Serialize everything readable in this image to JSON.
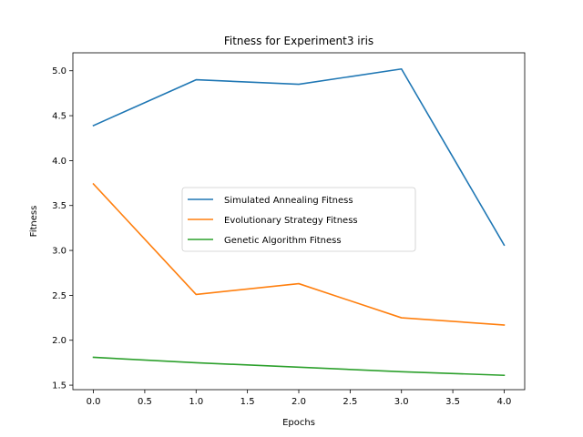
{
  "chart_data": {
    "type": "line",
    "title": "Fitness for Experiment3 iris",
    "xlabel": "Epochs",
    "ylabel": "Fitness",
    "x": [
      0,
      1,
      2,
      3,
      4
    ],
    "xlim": [
      -0.2,
      4.2
    ],
    "ylim": [
      1.45,
      5.2
    ],
    "xticks": [
      0.0,
      0.5,
      1.0,
      1.5,
      2.0,
      2.5,
      3.0,
      3.5,
      4.0
    ],
    "xtick_labels": [
      "0.0",
      "0.5",
      "1.0",
      "1.5",
      "2.0",
      "2.5",
      "3.0",
      "3.5",
      "4.0"
    ],
    "yticks": [
      1.5,
      2.0,
      2.5,
      3.0,
      3.5,
      4.0,
      4.5,
      5.0
    ],
    "ytick_labels": [
      "1.5",
      "2.0",
      "2.5",
      "3.0",
      "3.5",
      "4.0",
      "4.5",
      "5.0"
    ],
    "grid": false,
    "legend_position": "center",
    "series": [
      {
        "name": "Simulated Annealing Fitness",
        "color": "#1f77b4",
        "values": [
          4.39,
          4.9,
          4.85,
          5.02,
          3.06
        ]
      },
      {
        "name": "Evolutionary Strategy Fitness",
        "color": "#ff7f0e",
        "values": [
          3.74,
          2.51,
          2.63,
          2.25,
          2.17
        ]
      },
      {
        "name": "Genetic Algorithm Fitness",
        "color": "#2ca02c",
        "values": [
          1.81,
          1.75,
          1.7,
          1.65,
          1.61
        ]
      }
    ]
  }
}
